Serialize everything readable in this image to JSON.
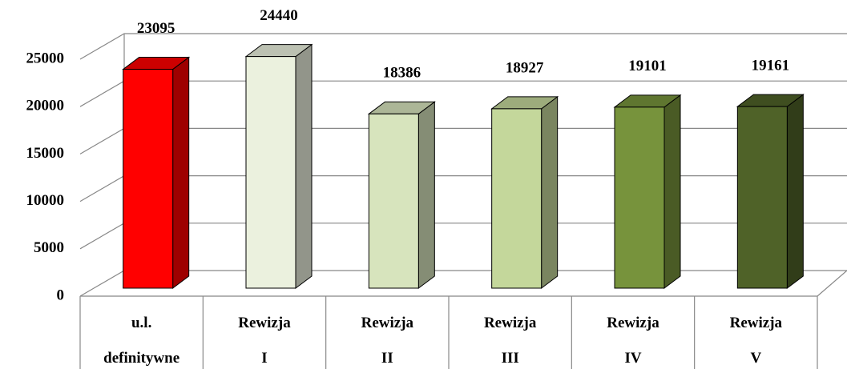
{
  "chart_data": {
    "type": "bar3d",
    "categories": [
      "u.l. definitywne",
      "Rewizja I",
      "Rewizja II",
      "Rewizja III",
      "Rewizja IV",
      "Rewizja V"
    ],
    "values": [
      23095,
      24440,
      18386,
      18927,
      19101,
      19161
    ],
    "colors": [
      "#ff0000",
      "#ebf1de",
      "#d7e4bd",
      "#c4d79b",
      "#77933c",
      "#4f6228"
    ],
    "ylim": [
      0,
      25000
    ],
    "yticks": [
      0,
      5000,
      10000,
      15000,
      20000,
      25000
    ],
    "grid": true
  }
}
